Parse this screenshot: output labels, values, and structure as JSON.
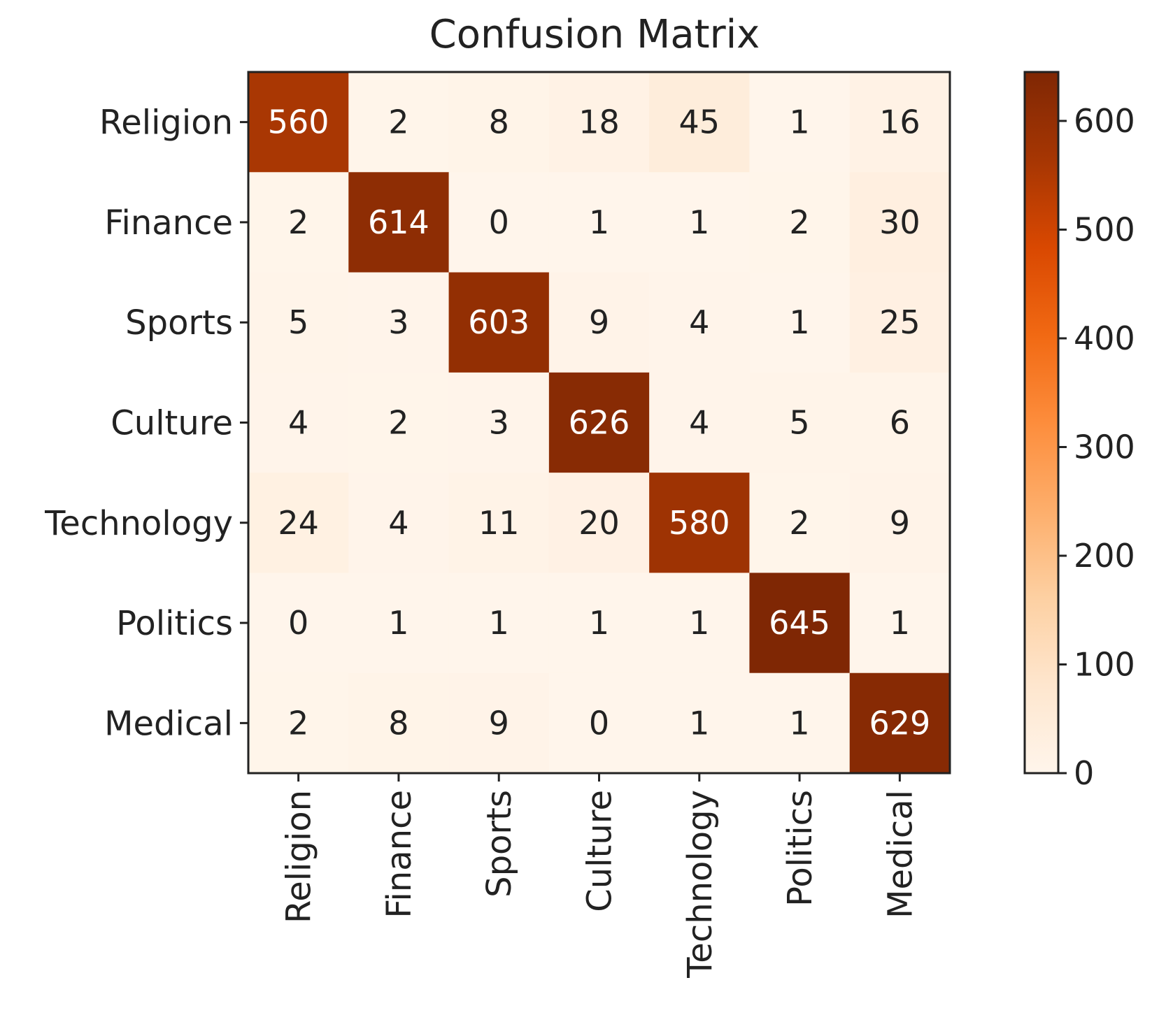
{
  "chart_data": {
    "type": "heatmap",
    "title": "Confusion Matrix",
    "xlabel": "",
    "ylabel": "",
    "row_labels": [
      "Religion",
      "Finance",
      "Sports",
      "Culture",
      "Technology",
      "Politics",
      "Medical"
    ],
    "col_labels": [
      "Religion",
      "Finance",
      "Sports",
      "Culture",
      "Technology",
      "Politics",
      "Medical"
    ],
    "values": [
      [
        560,
        2,
        8,
        18,
        45,
        1,
        16
      ],
      [
        2,
        614,
        0,
        1,
        1,
        2,
        30
      ],
      [
        5,
        3,
        603,
        9,
        4,
        1,
        25
      ],
      [
        4,
        2,
        3,
        626,
        4,
        5,
        6
      ],
      [
        24,
        4,
        11,
        20,
        580,
        2,
        9
      ],
      [
        0,
        1,
        1,
        1,
        1,
        645,
        1
      ],
      [
        2,
        8,
        9,
        0,
        1,
        1,
        629
      ]
    ],
    "colorbar": {
      "range": [
        0,
        645
      ],
      "ticks": [
        0,
        100,
        200,
        300,
        400,
        500,
        600
      ],
      "colormap": "Oranges",
      "colors": [
        "#fff5eb",
        "#fee6ce",
        "#fdd0a2",
        "#fdae6b",
        "#fd8d3c",
        "#f16913",
        "#d94801",
        "#a63603",
        "#7f2704"
      ]
    },
    "grid": false,
    "legend": "colorbar-right"
  }
}
